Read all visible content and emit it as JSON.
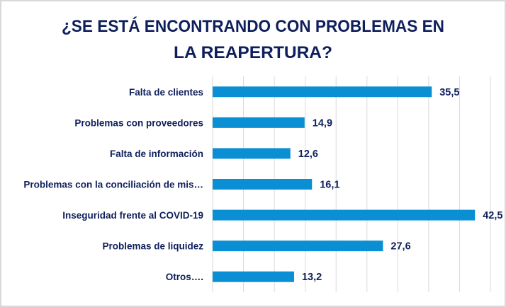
{
  "chart_data": {
    "type": "bar",
    "orientation": "horizontal",
    "title_lines": [
      "¿SE ESTÁ ENCONTRANDO CON PROBLEMAS EN",
      "LA REAPERTURA?"
    ],
    "categories": [
      "Falta de clientes",
      "Problemas con proveedores",
      "Falta de información",
      "Problemas con la conciliación de mis…",
      "Inseguridad frente al COVID-19",
      "Problemas de liquidez",
      "Otros…."
    ],
    "values": [
      35.5,
      14.9,
      12.6,
      16.1,
      42.5,
      27.6,
      13.2
    ],
    "data_labels": [
      "35,5",
      "14,9",
      "12,6",
      "16,1",
      "42,5",
      "27,6",
      "13,2"
    ],
    "xlim": [
      0,
      45
    ],
    "grid_step": 5,
    "grid": true,
    "xlabel": "",
    "ylabel": "",
    "colors": {
      "bar": "#0a8fd4",
      "text": "#0f1f5c",
      "grid": "#d9d9d9"
    }
  }
}
